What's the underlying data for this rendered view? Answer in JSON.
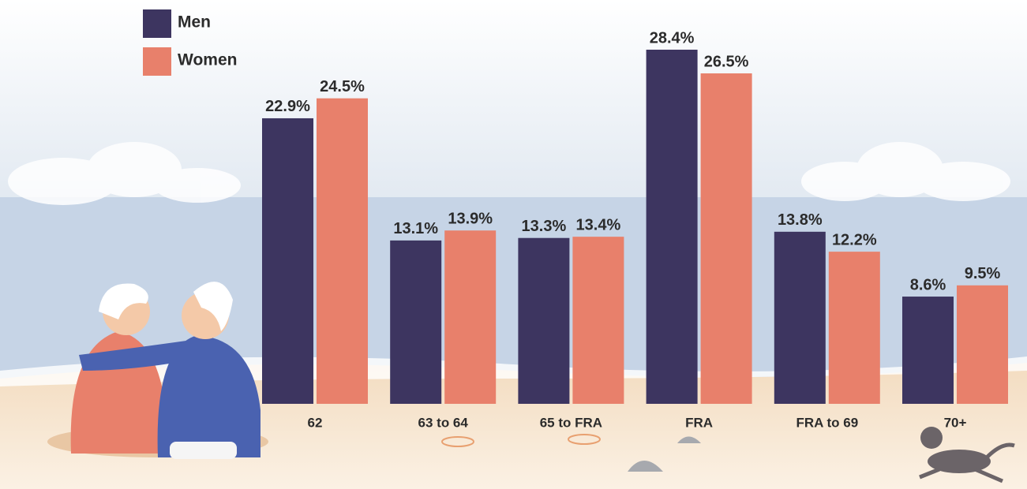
{
  "chart_data": {
    "type": "bar",
    "categories": [
      "62",
      "63 to 64",
      "65 to FRA",
      "FRA",
      "FRA to 69",
      "70+"
    ],
    "series": [
      {
        "name": "Men",
        "color": "#3d3560",
        "values": [
          22.9,
          13.1,
          13.3,
          28.4,
          13.8,
          8.6
        ],
        "value_labels": [
          "22.9%",
          "13.1%",
          "13.3%",
          "28.4%",
          "13.8%",
          "8.6%"
        ]
      },
      {
        "name": "Women",
        "color": "#e8806b",
        "values": [
          24.5,
          13.9,
          13.4,
          26.5,
          12.2,
          9.5
        ],
        "value_labels": [
          "24.5%",
          "13.9%",
          "13.4%",
          "26.5%",
          "12.2%",
          "9.5%"
        ]
      }
    ]
  }
}
